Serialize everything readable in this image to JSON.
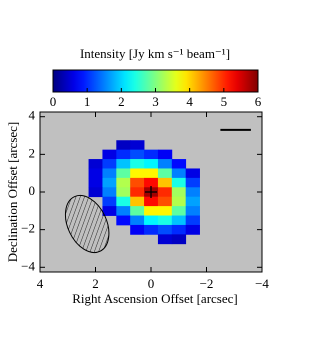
{
  "chart_data": {
    "type": "intensity-map",
    "colorbar_label": "Intensity [Jy km s⁻¹ beam⁻¹]",
    "colormap": "jet",
    "clim": [
      0,
      6
    ],
    "cticks": [
      0,
      1,
      2,
      3,
      4,
      5,
      6
    ],
    "x_label": "Right Ascension Offset [arcsec]",
    "y_label": "Declination Offset [arcsec]",
    "xlim": [
      4,
      -4
    ],
    "xticks": [
      4,
      2,
      0,
      {
        "value": -2,
        "label": "−2"
      },
      {
        "value": -4,
        "label": "−4"
      }
    ],
    "ylim": [
      -4.25,
      4.25
    ],
    "yticks": [
      {
        "value": -4,
        "label": "−4"
      },
      {
        "value": -2,
        "label": "−2"
      },
      0,
      2,
      4
    ],
    "background": "#c0c0c0",
    "x": [
      2.0,
      1.5,
      1.0,
      0.5,
      0,
      -0.5,
      -1.0,
      -1.5
    ],
    "y": [
      2.5,
      2.0,
      1.5,
      1.0,
      0.5,
      0,
      -0.5,
      -1.0,
      -1.5,
      -2.0,
      -2.5
    ],
    "z": [
      [
        null,
        null,
        0.4,
        0.5,
        null,
        null,
        null,
        null
      ],
      [
        null,
        0.6,
        1.0,
        1.2,
        1.0,
        0.7,
        null,
        null
      ],
      [
        0.5,
        1.1,
        1.9,
        2.4,
        2.2,
        1.5,
        0.8,
        null
      ],
      [
        0.6,
        1.5,
        2.8,
        3.8,
        3.8,
        2.8,
        1.5,
        0.6
      ],
      [
        0.6,
        1.7,
        3.3,
        4.8,
        5.2,
        4.1,
        2.4,
        1.1
      ],
      [
        0.5,
        1.5,
        3.2,
        5.0,
        5.8,
        5.0,
        3.2,
        1.5
      ],
      [
        null,
        1.1,
        2.4,
        4.1,
        5.2,
        4.8,
        3.3,
        1.7
      ],
      [
        null,
        0.6,
        1.5,
        2.8,
        3.8,
        3.8,
        2.8,
        1.5
      ],
      [
        null,
        null,
        0.8,
        1.5,
        2.2,
        2.4,
        1.9,
        1.1
      ],
      [
        null,
        null,
        null,
        0.7,
        1.0,
        1.2,
        1.0,
        0.6
      ],
      [
        null,
        null,
        null,
        null,
        null,
        0.5,
        0.4,
        null
      ]
    ],
    "marker": {
      "x": 0,
      "y": 0
    },
    "beam": {
      "x": 2.3,
      "y": -1.7,
      "major": 3.2,
      "minor": 1.4,
      "pa": 25
    },
    "scale_bar": {
      "x": [
        -2.5,
        -3.6
      ],
      "y": 3.3
    }
  }
}
